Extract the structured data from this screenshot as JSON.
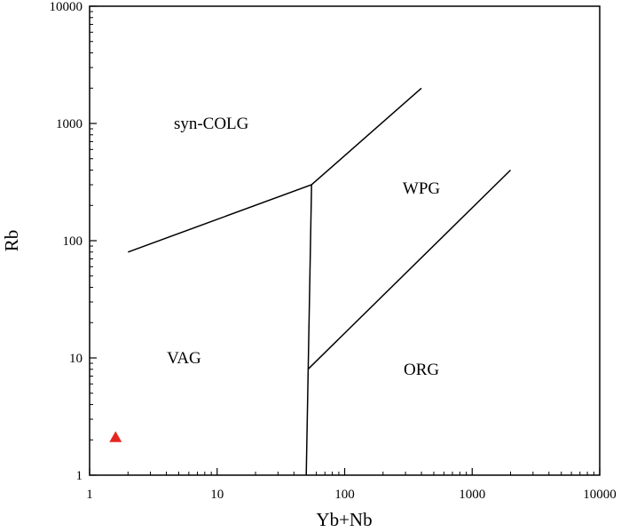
{
  "chart_data": {
    "type": "scatter",
    "title": "",
    "xlabel": "Yb+Nb",
    "ylabel": "Rb",
    "x_scale": "log",
    "y_scale": "log",
    "xlim": [
      1,
      10000
    ],
    "ylim": [
      1,
      10000
    ],
    "grid": false,
    "x_ticks": [
      "1",
      "10",
      "100",
      "1000",
      "10000"
    ],
    "y_ticks": [
      "1",
      "10",
      "100",
      "1000",
      "10000"
    ],
    "x_tick_values": [
      1,
      10,
      100,
      1000,
      10000
    ],
    "y_tick_values": [
      1,
      10,
      100,
      1000,
      10000
    ],
    "boundaries": [
      {
        "points": [
          [
            2,
            80
          ],
          [
            55,
            300
          ],
          [
            400,
            2000
          ]
        ]
      },
      {
        "points": [
          [
            55,
            300
          ],
          [
            50,
            1
          ]
        ]
      },
      {
        "points": [
          [
            51.5,
            8
          ],
          [
            2000,
            400
          ]
        ]
      }
    ],
    "regions": [
      {
        "label": "syn-COLG",
        "x": 9,
        "y": 1000
      },
      {
        "label": "WPG",
        "x": 400,
        "y": 280
      },
      {
        "label": "VAG",
        "x": 5.5,
        "y": 10
      },
      {
        "label": "ORG",
        "x": 400,
        "y": 8
      }
    ],
    "points": [
      {
        "x": 1.6,
        "y": 2.1,
        "marker": "triangle",
        "color": "#e52620"
      }
    ],
    "colors": {
      "marker": "#e52620",
      "line": "#000000"
    }
  }
}
